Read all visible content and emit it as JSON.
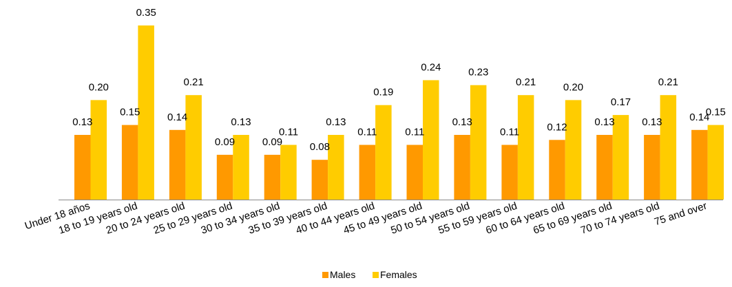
{
  "chart_data": {
    "type": "bar",
    "categories": [
      "Under 18 años",
      "18 to 19 years old",
      "20 to 24 years old",
      "25 to 29 years old",
      "30 to 34 years old",
      "35 to 39 years old",
      "40 to 44 years old",
      "45 to 49 years old",
      "50 to 54 years old",
      "55 to 59 years old",
      "60 to 64 years old",
      "65 to 69 years old",
      "70 to 74 years old",
      "75 and over"
    ],
    "series": [
      {
        "name": "Males",
        "color": "#ff9900",
        "values": [
          0.13,
          0.15,
          0.14,
          0.09,
          0.09,
          0.08,
          0.11,
          0.11,
          0.13,
          0.11,
          0.12,
          0.13,
          0.13,
          0.14
        ]
      },
      {
        "name": "Females",
        "color": "#ffcc00",
        "values": [
          0.2,
          0.35,
          0.21,
          0.13,
          0.11,
          0.13,
          0.19,
          0.24,
          0.23,
          0.21,
          0.2,
          0.17,
          0.21,
          0.15
        ]
      }
    ],
    "data_labels": [
      [
        "0.13",
        "0.15",
        "0.14",
        "0.09",
        "0.09",
        "0.08",
        "0.11",
        "0.11",
        "0.13",
        "0.11",
        "0.12",
        "0.13",
        "0.13",
        "0.14"
      ],
      [
        "0.20",
        "0.35",
        "0.21",
        "0.13",
        "0.11",
        "0.13",
        "0.19",
        "0.24",
        "0.23",
        "0.21",
        "0.20",
        "0.17",
        "0.21",
        "0.15"
      ]
    ],
    "ylim": [
      0,
      0.35
    ],
    "grid": false,
    "legend_position": "bottom",
    "title": "",
    "xlabel": "",
    "ylabel": ""
  }
}
